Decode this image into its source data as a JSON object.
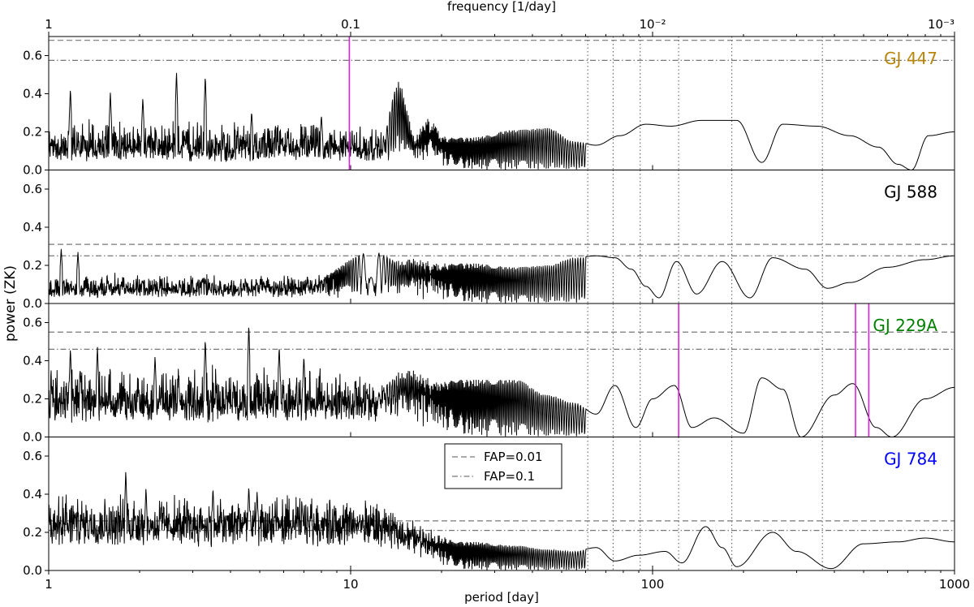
{
  "chart_data": {
    "type": "line",
    "top_axis": {
      "label": "frequency [1/day]",
      "ticks": [
        {
          "at_period": 1,
          "label": "1"
        },
        {
          "at_period": 10,
          "label": "0.1"
        },
        {
          "at_period": 100,
          "label": "10⁻²"
        },
        {
          "at_period": 1000,
          "label": "10⁻³"
        }
      ]
    },
    "xlabel": "period [day]",
    "ylabel": "power (ZK)",
    "xscale": "log",
    "xlim": [
      1,
      1000
    ],
    "ylim": [
      0,
      0.7
    ],
    "x_ticks": [
      {
        "value": 1,
        "label": "1"
      },
      {
        "value": 10,
        "label": "10"
      },
      {
        "value": 100,
        "label": "100"
      },
      {
        "value": 1000,
        "label": "1000"
      }
    ],
    "y_ticks": [
      {
        "value": 0.0,
        "label": "0.0"
      },
      {
        "value": 0.2,
        "label": "0.2"
      },
      {
        "value": 0.4,
        "label": "0.4"
      },
      {
        "value": 0.6,
        "label": "0.6"
      }
    ],
    "grid": false,
    "reference_periods": [
      61,
      74,
      91,
      122,
      183,
      365
    ],
    "legend": {
      "placement": "upper-center of bottom panel",
      "entries": [
        {
          "label": "FAP=0.01",
          "style": "dashed"
        },
        {
          "label": "FAP=0.1",
          "style": "dashdot"
        }
      ]
    },
    "panels": [
      {
        "name": "GJ 447",
        "color": "#b8860b",
        "fap_001": 0.68,
        "fap_01": 0.575,
        "marked_periods": [
          9.9
        ],
        "pattern": {
          "base": 0.07,
          "amp": 0.13,
          "osc": 38,
          "spikes": [
            [
              1.18,
              0.43
            ],
            [
              1.6,
              0.41
            ],
            [
              2.05,
              0.38
            ],
            [
              2.65,
              0.52
            ],
            [
              3.3,
              0.5
            ],
            [
              4.7,
              0.31
            ],
            [
              6.2,
              0.18
            ],
            [
              8.0,
              0.29
            ]
          ],
          "humps": [
            [
              14.5,
              0.56,
              0.045
            ],
            [
              18.5,
              0.47,
              0.05
            ]
          ],
          "smooth": [
            [
              25,
              0.17
            ],
            [
              35,
              0.21
            ],
            [
              45,
              0.22
            ],
            [
              55,
              0.15
            ],
            [
              65,
              0.13
            ],
            [
              78,
              0.18
            ],
            [
              95,
              0.24
            ],
            [
              115,
              0.23
            ],
            [
              145,
              0.26
            ],
            [
              190,
              0.26
            ],
            [
              230,
              0.04
            ],
            [
              270,
              0.24
            ],
            [
              350,
              0.23
            ],
            [
              450,
              0.18
            ],
            [
              560,
              0.12
            ],
            [
              650,
              0.03
            ],
            [
              720,
              0.0
            ],
            [
              820,
              0.18
            ],
            [
              1000,
              0.2
            ]
          ]
        }
      },
      {
        "name": "GJ 588",
        "color": "#000000",
        "fap_001": 0.31,
        "fap_01": 0.25,
        "marked_periods": [],
        "pattern": {
          "base": 0.05,
          "amp": 0.07,
          "osc": 40,
          "spikes": [
            [
              1.1,
              0.29
            ],
            [
              1.25,
              0.27
            ]
          ],
          "humps": [
            [
              12.0,
              0.27,
              0.2
            ],
            [
              17.0,
              0.26,
              0.2
            ]
          ],
          "smooth": [
            [
              25,
              0.21
            ],
            [
              35,
              0.19
            ],
            [
              45,
              0.2
            ],
            [
              55,
              0.24
            ],
            [
              65,
              0.25
            ],
            [
              75,
              0.24
            ],
            [
              85,
              0.18
            ],
            [
              95,
              0.09
            ],
            [
              105,
              0.03
            ],
            [
              120,
              0.22
            ],
            [
              140,
              0.05
            ],
            [
              170,
              0.22
            ],
            [
              210,
              0.03
            ],
            [
              250,
              0.24
            ],
            [
              320,
              0.18
            ],
            [
              380,
              0.08
            ],
            [
              450,
              0.11
            ],
            [
              600,
              0.19
            ],
            [
              800,
              0.23
            ],
            [
              1000,
              0.25
            ]
          ]
        }
      },
      {
        "name": "GJ 229A",
        "color": "#008000",
        "fap_001": 0.55,
        "fap_01": 0.46,
        "marked_periods": [
          122,
          470,
          520
        ],
        "pattern": {
          "base": 0.12,
          "amp": 0.16,
          "osc": 44,
          "spikes": [
            [
              1.18,
              0.47
            ],
            [
              1.45,
              0.48
            ],
            [
              2.25,
              0.43
            ],
            [
              3.3,
              0.52
            ],
            [
              4.6,
              0.6
            ],
            [
              5.8,
              0.48
            ],
            [
              7.0,
              0.43
            ]
          ],
          "humps": [
            [
              16.0,
              0.39,
              0.15
            ]
          ],
          "smooth": [
            [
              25,
              0.3
            ],
            [
              35,
              0.3
            ],
            [
              45,
              0.22
            ],
            [
              55,
              0.18
            ],
            [
              65,
              0.12
            ],
            [
              75,
              0.27
            ],
            [
              88,
              0.05
            ],
            [
              100,
              0.2
            ],
            [
              118,
              0.27
            ],
            [
              135,
              0.05
            ],
            [
              160,
              0.1
            ],
            [
              200,
              0.02
            ],
            [
              230,
              0.31
            ],
            [
              270,
              0.25
            ],
            [
              310,
              0.0
            ],
            [
              400,
              0.22
            ],
            [
              460,
              0.28
            ],
            [
              550,
              0.05
            ],
            [
              620,
              0.0
            ],
            [
              800,
              0.2
            ],
            [
              1000,
              0.26
            ]
          ]
        }
      },
      {
        "name": "GJ 784",
        "color": "#0000ff",
        "fap_001": 0.26,
        "fap_01": 0.21,
        "marked_periods": [],
        "pattern": {
          "base": 0.2,
          "amp": 0.1,
          "osc": 42,
          "spikes": [
            [
              1.8,
              0.53
            ],
            [
              2.1,
              0.44
            ],
            [
              3.5,
              0.44
            ],
            [
              4.6,
              0.45
            ],
            [
              4.9,
              0.42
            ]
          ],
          "humps": [],
          "smooth": [
            [
              25,
              0.15
            ],
            [
              35,
              0.13
            ],
            [
              45,
              0.11
            ],
            [
              55,
              0.1
            ],
            [
              65,
              0.12
            ],
            [
              75,
              0.05
            ],
            [
              90,
              0.08
            ],
            [
              110,
              0.1
            ],
            [
              125,
              0.04
            ],
            [
              150,
              0.23
            ],
            [
              170,
              0.12
            ],
            [
              190,
              0.02
            ],
            [
              250,
              0.2
            ],
            [
              300,
              0.1
            ],
            [
              390,
              0.01
            ],
            [
              500,
              0.14
            ],
            [
              650,
              0.15
            ],
            [
              800,
              0.17
            ],
            [
              1000,
              0.15
            ]
          ]
        }
      }
    ]
  }
}
